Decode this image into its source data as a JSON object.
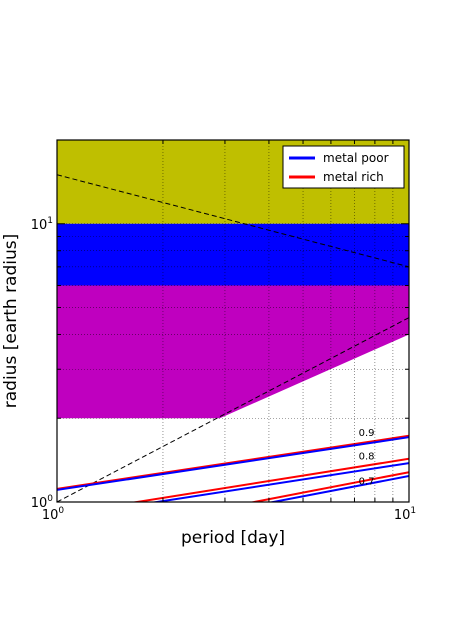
{
  "chart_data": {
    "type": "line",
    "xlabel": "period [day]",
    "ylabel": "radius [earth radius]",
    "xscale": "log",
    "yscale": "log",
    "xlim": [
      1,
      10
    ],
    "ylim": [
      1,
      20
    ],
    "grid": true,
    "legend_position": "top-right",
    "x_tick_labels": [
      {
        "base": "10",
        "exp": "0",
        "value": 1
      },
      {
        "base": "10",
        "exp": "1",
        "value": 10
      }
    ],
    "y_tick_labels": [
      {
        "base": "10",
        "exp": "0",
        "value": 1
      },
      {
        "base": "10",
        "exp": "1",
        "value": 10
      }
    ],
    "bands": [
      {
        "y_range": [
          10,
          20
        ],
        "color": "#bfbf00"
      },
      {
        "y_range": [
          6,
          10
        ],
        "color": "#0000ff"
      },
      {
        "y_range": [
          2,
          6
        ],
        "color": "#bf00bf",
        "clip": "above-diagonal",
        "diagonal_points": [
          [
            2.9,
            2.0
          ],
          [
            10,
            4.0
          ]
        ]
      }
    ],
    "dashed_lines": [
      {
        "points": [
          [
            1,
            15
          ],
          [
            10,
            7
          ]
        ],
        "color": "#000000"
      },
      {
        "points": [
          [
            1,
            1
          ],
          [
            10,
            4.6
          ]
        ],
        "color": "#000000"
      }
    ],
    "series": [
      {
        "name": "metal poor",
        "color": "#0000ff",
        "width": 3
      },
      {
        "name": "metal rich",
        "color": "#ff0000",
        "width": 3
      }
    ],
    "curves": [
      {
        "label": "0.9",
        "label_at": [
          9.1,
          1.7
        ],
        "lines": [
          {
            "color": "#ff0000",
            "points": [
              [
                1,
                1.115
              ],
              [
                10,
                1.73
              ]
            ]
          },
          {
            "color": "#0000ff",
            "points": [
              [
                1,
                1.105
              ],
              [
                10,
                1.71
              ]
            ]
          }
        ]
      },
      {
        "label": "0.8",
        "label_at": [
          9.1,
          1.4
        ],
        "lines": [
          {
            "color": "#ff0000",
            "points": [
              [
                1,
                0.9
              ],
              [
                10,
                1.43
              ]
            ]
          },
          {
            "color": "#0000ff",
            "points": [
              [
                1,
                0.88
              ],
              [
                10,
                1.38
              ]
            ]
          }
        ]
      },
      {
        "label": "0.7",
        "label_at": [
          9.1,
          1.135
        ],
        "lines": [
          {
            "color": "#ff0000",
            "points": [
              [
                1,
                0.73
              ],
              [
                10,
                1.28
              ]
            ]
          },
          {
            "color": "#0000ff",
            "points": [
              [
                1,
                0.71
              ],
              [
                10,
                1.24
              ]
            ]
          }
        ]
      }
    ]
  }
}
